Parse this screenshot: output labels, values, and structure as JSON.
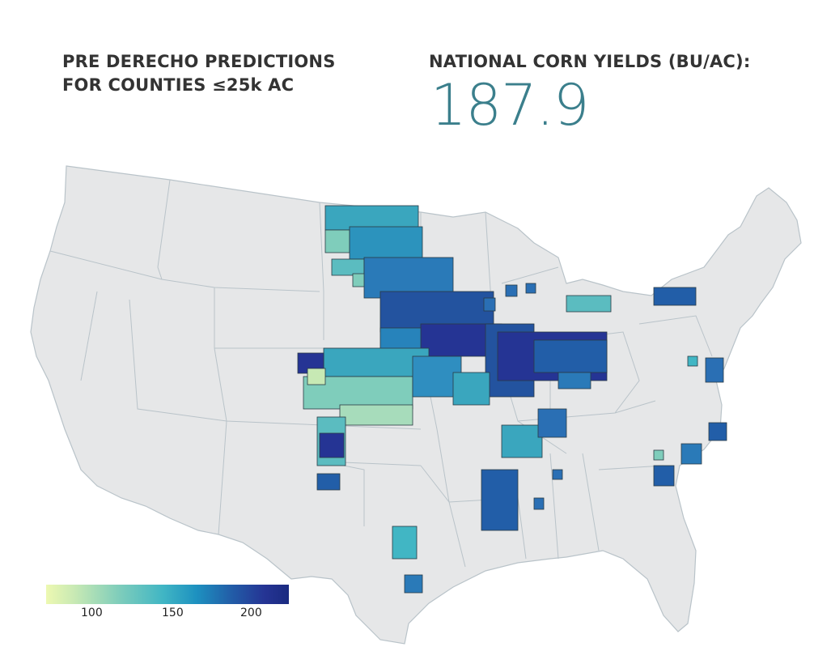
{
  "headline": {
    "line1": "PRE DERECHO PREDICTIONS",
    "line2": "FOR COUNTIES ≤25k AC"
  },
  "stat": {
    "label": "NATIONAL CORN YIELDS (BU/AC):",
    "value": "187.9"
  },
  "legend": {
    "ticks": [
      "100",
      "150",
      "200"
    ],
    "colors": [
      "#edf8b1",
      "#7fcdbb",
      "#41b6c4",
      "#1d91c0",
      "#225ea8",
      "#253494"
    ]
  },
  "map": {
    "land_color": "#e6e7e8",
    "border_color": "#b9c3c9",
    "county_border_color": "#2b3a44"
  }
}
